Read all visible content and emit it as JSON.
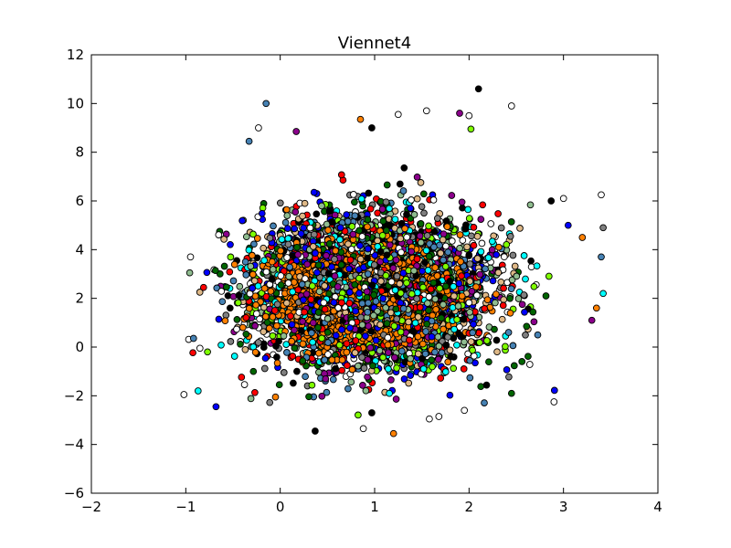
{
  "chart_data": {
    "type": "scatter",
    "title": "Viennet4",
    "xlabel": "",
    "ylabel": "",
    "xlim": [
      -2,
      4
    ],
    "ylim": [
      -6,
      12
    ],
    "xticks": [
      -2,
      -1,
      0,
      1,
      2,
      3,
      4
    ],
    "yticks": [
      -6,
      -4,
      -2,
      0,
      2,
      4,
      6,
      8,
      10,
      12
    ],
    "xtick_labels": [
      "−2",
      "−1",
      "0",
      "1",
      "2",
      "3",
      "4"
    ],
    "ytick_labels": [
      "−6",
      "−4",
      "−2",
      "0",
      "2",
      "4",
      "6",
      "8",
      "10",
      "12"
    ],
    "grid": false,
    "legend": "none",
    "colors": [
      "#ff8000",
      "#ffffff",
      "#006400",
      "#8b008b",
      "#00ffff",
      "#0000ff",
      "#000000",
      "#8fbc8f",
      "#ff0000",
      "#7fff00",
      "#4682b4",
      "#808080",
      "#deb887"
    ],
    "cloud": {
      "point_count": 4000,
      "center": [
        0.95,
        2.3
      ],
      "std": [
        0.62,
        1.55
      ],
      "dense_core": {
        "color": "#ff8000",
        "center": [
          0.85,
          2.0
        ],
        "std": [
          0.45,
          1.0
        ]
      }
    },
    "outliers": [
      {
        "x": 2.1,
        "y": 10.6,
        "color": "#000000"
      },
      {
        "x": -0.15,
        "y": 10.0,
        "color": "#4682b4"
      },
      {
        "x": 2.45,
        "y": 9.9,
        "color": "#ffffff"
      },
      {
        "x": -0.23,
        "y": 9.0,
        "color": "#ffffff"
      },
      {
        "x": 0.97,
        "y": 9.0,
        "color": "#000000"
      },
      {
        "x": 1.55,
        "y": 9.7,
        "color": "#ffffff"
      },
      {
        "x": 1.25,
        "y": 9.55,
        "color": "#ffffff"
      },
      {
        "x": 1.9,
        "y": 9.6,
        "color": "#8b008b"
      },
      {
        "x": 2.0,
        "y": 9.5,
        "color": "#ffffff"
      },
      {
        "x": 0.17,
        "y": 8.85,
        "color": "#8b008b"
      },
      {
        "x": 0.85,
        "y": 9.35,
        "color": "#ff8000"
      },
      {
        "x": 2.02,
        "y": 8.95,
        "color": "#7fff00"
      },
      {
        "x": -0.33,
        "y": 8.45,
        "color": "#4682b4"
      },
      {
        "x": 3.4,
        "y": 6.25,
        "color": "#ffffff"
      },
      {
        "x": 3.42,
        "y": 4.9,
        "color": "#808080"
      },
      {
        "x": 3.4,
        "y": 3.7,
        "color": "#4682b4"
      },
      {
        "x": 3.42,
        "y": 2.2,
        "color": "#00ffff"
      },
      {
        "x": 3.35,
        "y": 1.6,
        "color": "#ff8000"
      },
      {
        "x": 3.3,
        "y": 1.1,
        "color": "#8b008b"
      },
      {
        "x": -1.02,
        "y": -1.95,
        "color": "#ffffff"
      },
      {
        "x": -0.87,
        "y": -1.8,
        "color": "#00ffff"
      },
      {
        "x": -0.68,
        "y": -2.45,
        "color": "#0000ff"
      },
      {
        "x": -0.95,
        "y": 3.7,
        "color": "#ffffff"
      },
      {
        "x": -0.85,
        "y": -0.05,
        "color": "#ffffff"
      },
      {
        "x": -0.77,
        "y": -0.2,
        "color": "#7fff00"
      },
      {
        "x": 0.37,
        "y": -3.45,
        "color": "#000000"
      },
      {
        "x": 1.2,
        "y": -3.55,
        "color": "#ff8000"
      },
      {
        "x": 0.88,
        "y": -3.35,
        "color": "#ffffff"
      },
      {
        "x": 1.58,
        "y": -2.95,
        "color": "#ffffff"
      },
      {
        "x": 1.68,
        "y": -2.85,
        "color": "#ffffff"
      },
      {
        "x": 0.97,
        "y": -2.7,
        "color": "#000000"
      },
      {
        "x": 2.9,
        "y": -2.25,
        "color": "#ffffff"
      },
      {
        "x": 2.45,
        "y": -1.9,
        "color": "#006400"
      },
      {
        "x": 1.95,
        "y": -2.6,
        "color": "#ffffff"
      },
      {
        "x": -0.05,
        "y": -2.05,
        "color": "#ff8000"
      },
      {
        "x": 2.87,
        "y": 6.0,
        "color": "#000000"
      },
      {
        "x": 3.0,
        "y": 6.1,
        "color": "#ffffff"
      },
      {
        "x": 3.05,
        "y": 5.0,
        "color": "#0000ff"
      },
      {
        "x": 3.2,
        "y": 4.5,
        "color": "#ff8000"
      }
    ]
  }
}
